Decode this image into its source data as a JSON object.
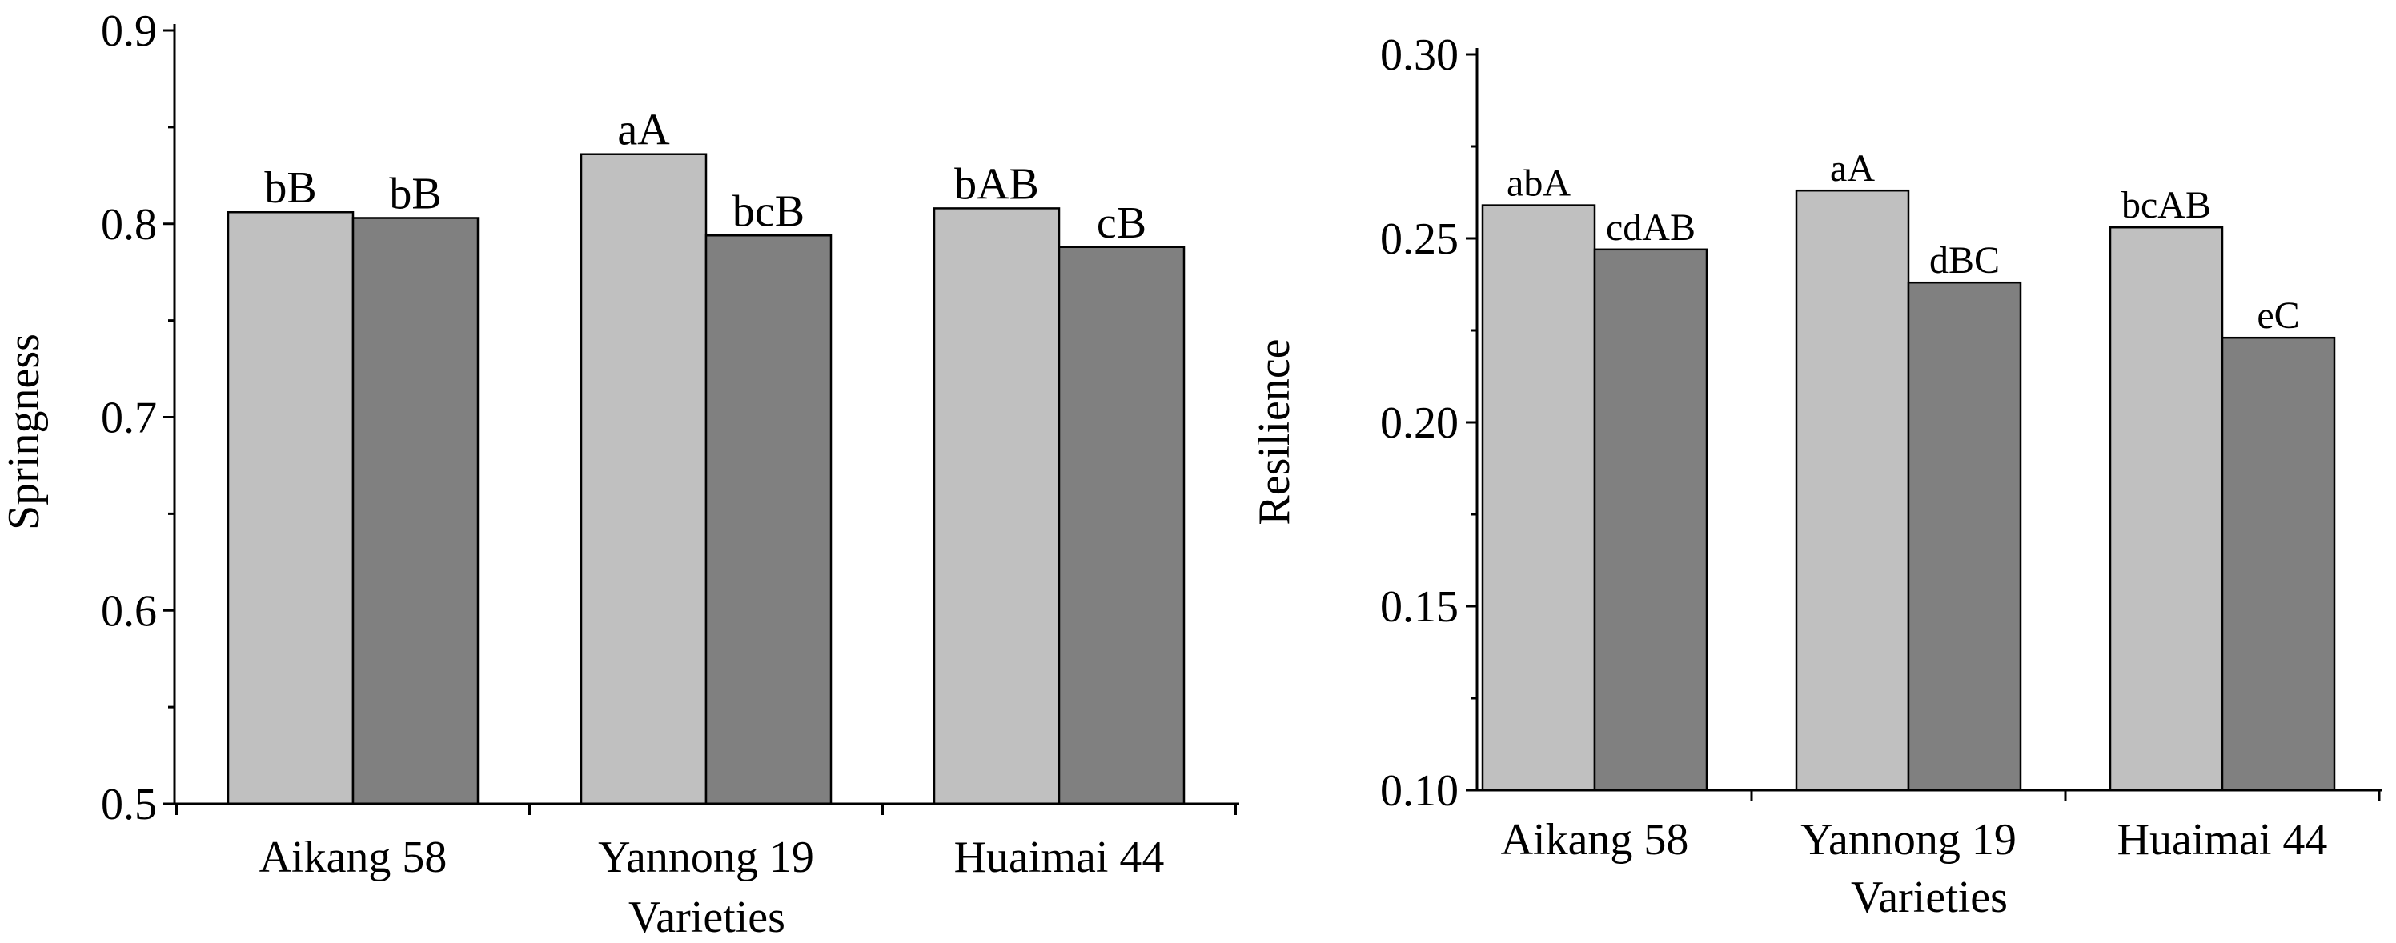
{
  "chart_data": [
    {
      "type": "bar",
      "categories": [
        "Aikang 58",
        "Yannong 19",
        "Huaimai 44"
      ],
      "series": [
        {
          "name": "Series 1",
          "color": "#c0c0c0",
          "values": [
            0.806,
            0.836,
            0.808
          ],
          "labels": [
            "bB",
            "aA",
            "bAB"
          ]
        },
        {
          "name": "Series 2",
          "color": "#808080",
          "values": [
            0.803,
            0.794,
            0.788
          ],
          "labels": [
            "bB",
            "bcB",
            "cB"
          ]
        }
      ],
      "title": "",
      "xlabel": "Varieties",
      "ylabel": "Springness",
      "ylim": [
        0.5,
        0.9
      ],
      "yticks": [
        "0.5",
        "0.6",
        "0.7",
        "0.8",
        "0.9"
      ]
    },
    {
      "type": "bar",
      "categories": [
        "Aikang 58",
        "Yannong 19",
        "Huaimai 44"
      ],
      "series": [
        {
          "name": "Series 1",
          "color": "#c0c0c0",
          "values": [
            0.259,
            0.263,
            0.253
          ],
          "labels": [
            "abA",
            "aA",
            "bcAB"
          ]
        },
        {
          "name": "Series 2",
          "color": "#808080",
          "values": [
            0.247,
            0.238,
            0.223
          ],
          "labels": [
            "cdAB",
            "dBC",
            "eC"
          ]
        }
      ],
      "title": "",
      "xlabel": "Varieties",
      "ylabel": "Resilience",
      "ylim": [
        0.1,
        0.3
      ],
      "yticks": [
        "0.10",
        "0.15",
        "0.20",
        "0.25",
        "0.30"
      ]
    }
  ]
}
